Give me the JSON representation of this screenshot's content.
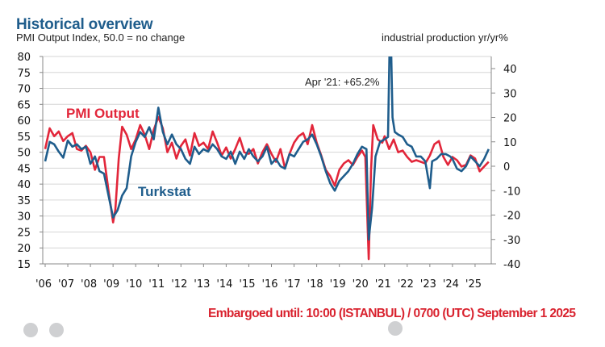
{
  "chart_data": {
    "type": "line",
    "title": "Historical overview",
    "subtitle": "PMI Output Index, 50.0 = no change",
    "y2label": "industrial production yr/yr%",
    "ylim": [
      15,
      80
    ],
    "y2lim": [
      -40,
      45
    ],
    "yticks": [
      80,
      75,
      70,
      65,
      60,
      55,
      50,
      45,
      40,
      35,
      30,
      25,
      20,
      15
    ],
    "y2ticks": [
      40,
      30,
      20,
      10,
      0,
      -10,
      -20,
      -30,
      -40
    ],
    "xticks": [
      "'06",
      "'07",
      "'08",
      "'09",
      "'10",
      "'11",
      "'12",
      "'13",
      "'14",
      "'15",
      "'16",
      "'17",
      "'18",
      "'19",
      "'20",
      "'21",
      "'22",
      "'23",
      "'24",
      "'25"
    ],
    "xrange": [
      2006.0,
      2025.7
    ],
    "grid": true,
    "annotation": "Apr '21: +65.2%",
    "series": [
      {
        "name": "PMI Output",
        "axis": "left",
        "color": "#e2263a",
        "x": [
          2006.0,
          2006.2,
          2006.4,
          2006.6,
          2006.8,
          2007.0,
          2007.2,
          2007.4,
          2007.6,
          2007.8,
          2008.0,
          2008.2,
          2008.4,
          2008.6,
          2008.8,
          2009.0,
          2009.1,
          2009.25,
          2009.4,
          2009.6,
          2009.8,
          2010.0,
          2010.2,
          2010.4,
          2010.6,
          2010.8,
          2011.0,
          2011.2,
          2011.4,
          2011.6,
          2011.8,
          2012.0,
          2012.2,
          2012.4,
          2012.6,
          2012.8,
          2013.0,
          2013.2,
          2013.4,
          2013.6,
          2013.8,
          2014.0,
          2014.2,
          2014.4,
          2014.6,
          2014.8,
          2015.0,
          2015.2,
          2015.4,
          2015.6,
          2015.8,
          2016.0,
          2016.2,
          2016.4,
          2016.6,
          2016.8,
          2017.0,
          2017.2,
          2017.4,
          2017.6,
          2017.8,
          2018.0,
          2018.2,
          2018.4,
          2018.6,
          2018.8,
          2019.0,
          2019.2,
          2019.4,
          2019.6,
          2019.8,
          2020.0,
          2020.15,
          2020.3,
          2020.4,
          2020.5,
          2020.7,
          2020.9,
          2021.0,
          2021.2,
          2021.4,
          2021.6,
          2021.8,
          2022.0,
          2022.2,
          2022.4,
          2022.6,
          2022.8,
          2023.0,
          2023.2,
          2023.4,
          2023.6,
          2023.8,
          2024.0,
          2024.2,
          2024.4,
          2024.6,
          2024.8,
          2025.0,
          2025.2,
          2025.4,
          2025.6
        ],
        "values": [
          51.0,
          57.5,
          55.0,
          56.5,
          53.5,
          55.0,
          56.0,
          51.0,
          50.5,
          52.0,
          50.0,
          44.5,
          48.5,
          48.5,
          38.0,
          28.0,
          32.0,
          48.0,
          58.0,
          55.5,
          51.0,
          54.0,
          58.5,
          55.5,
          51.0,
          57.0,
          61.0,
          57.5,
          50.0,
          53.0,
          48.0,
          52.0,
          54.0,
          49.0,
          56.0,
          52.0,
          53.0,
          51.0,
          56.5,
          53.0,
          49.0,
          51.5,
          48.0,
          51.0,
          54.5,
          50.0,
          49.5,
          51.0,
          46.5,
          50.0,
          52.5,
          49.5,
          47.0,
          51.0,
          45.0,
          49.5,
          53.0,
          55.0,
          56.0,
          52.5,
          58.5,
          53.0,
          49.0,
          44.5,
          42.5,
          39.5,
          44.5,
          46.5,
          47.5,
          46.0,
          48.5,
          50.5,
          48.5,
          16.5,
          44.0,
          58.5,
          54.0,
          53.0,
          55.0,
          51.0,
          54.0,
          50.0,
          50.5,
          48.5,
          47.0,
          47.5,
          47.0,
          46.5,
          49.0,
          52.5,
          53.5,
          48.5,
          46.0,
          48.5,
          47.5,
          45.5,
          46.0,
          49.0,
          48.0,
          44.0,
          45.5,
          47.0
        ]
      },
      {
        "name": "Turkstat",
        "axis": "right",
        "color": "#1f5d8c",
        "x": [
          2006.0,
          2006.2,
          2006.4,
          2006.6,
          2006.8,
          2007.0,
          2007.2,
          2007.4,
          2007.6,
          2007.8,
          2008.0,
          2008.2,
          2008.4,
          2008.6,
          2008.8,
          2009.0,
          2009.2,
          2009.4,
          2009.6,
          2009.8,
          2010.0,
          2010.2,
          2010.4,
          2010.6,
          2010.8,
          2011.0,
          2011.2,
          2011.4,
          2011.6,
          2011.8,
          2012.0,
          2012.2,
          2012.4,
          2012.6,
          2012.8,
          2013.0,
          2013.2,
          2013.4,
          2013.6,
          2013.8,
          2014.0,
          2014.2,
          2014.4,
          2014.6,
          2014.8,
          2015.0,
          2015.2,
          2015.4,
          2015.6,
          2015.8,
          2016.0,
          2016.2,
          2016.4,
          2016.6,
          2016.8,
          2017.0,
          2017.2,
          2017.4,
          2017.6,
          2017.8,
          2018.0,
          2018.2,
          2018.4,
          2018.6,
          2018.8,
          2019.0,
          2019.2,
          2019.4,
          2019.6,
          2019.8,
          2020.0,
          2020.2,
          2020.3,
          2020.45,
          2020.6,
          2020.8,
          2021.0,
          2021.15,
          2021.25,
          2021.35,
          2021.45,
          2021.6,
          2021.8,
          2022.0,
          2022.2,
          2022.4,
          2022.6,
          2022.8,
          2023.0,
          2023.1,
          2023.3,
          2023.5,
          2023.7,
          2023.9,
          2024.0,
          2024.2,
          2024.4,
          2024.6,
          2024.8,
          2025.0,
          2025.2,
          2025.4,
          2025.6
        ],
        "values": [
          2.0,
          10.0,
          9.0,
          6.0,
          3.5,
          10.5,
          8.0,
          9.0,
          7.0,
          8.0,
          1.0,
          4.0,
          -2.0,
          -3.0,
          -12.0,
          -21.0,
          -18.0,
          -12.0,
          -9.0,
          4.0,
          10.0,
          14.0,
          12.0,
          16.0,
          11.0,
          24.0,
          14.0,
          9.0,
          13.0,
          9.0,
          7.0,
          3.0,
          1.0,
          8.0,
          5.0,
          7.0,
          6.0,
          9.0,
          7.0,
          4.0,
          3.0,
          6.0,
          1.0,
          6.0,
          3.0,
          7.0,
          4.0,
          2.0,
          4.0,
          8.0,
          1.0,
          3.0,
          0.0,
          -1.0,
          5.0,
          4.0,
          7.0,
          10.0,
          11.0,
          13.0,
          9.0,
          4.0,
          -2.0,
          -7.0,
          -10.0,
          -6.0,
          -4.0,
          -2.0,
          1.0,
          5.0,
          8.0,
          7.0,
          -30.0,
          -17.0,
          4.0,
          10.0,
          11.0,
          12.0,
          65.2,
          20.0,
          14.0,
          13.0,
          12.0,
          9.0,
          8.0,
          4.0,
          4.0,
          2.0,
          -9.0,
          2.0,
          3.0,
          5.0,
          5.0,
          4.0,
          3.0,
          -1.0,
          -2.0,
          0.0,
          4.0,
          2.0,
          0.0,
          3.0,
          7.0
        ]
      }
    ]
  },
  "header": {
    "title": "Historical overview",
    "subtitle": "PMI Output Index, 50.0 = no change",
    "right_axis_title": "industrial production yr/yr%"
  },
  "labels": {
    "pmi": "PMI Output",
    "turkstat": "Turkstat",
    "annotation": "Apr '21: +65.2%"
  },
  "footer": {
    "embargo": "Embargoed until: 10:00 (ISTANBUL) / 0700 (UTC) September 1 2025"
  }
}
